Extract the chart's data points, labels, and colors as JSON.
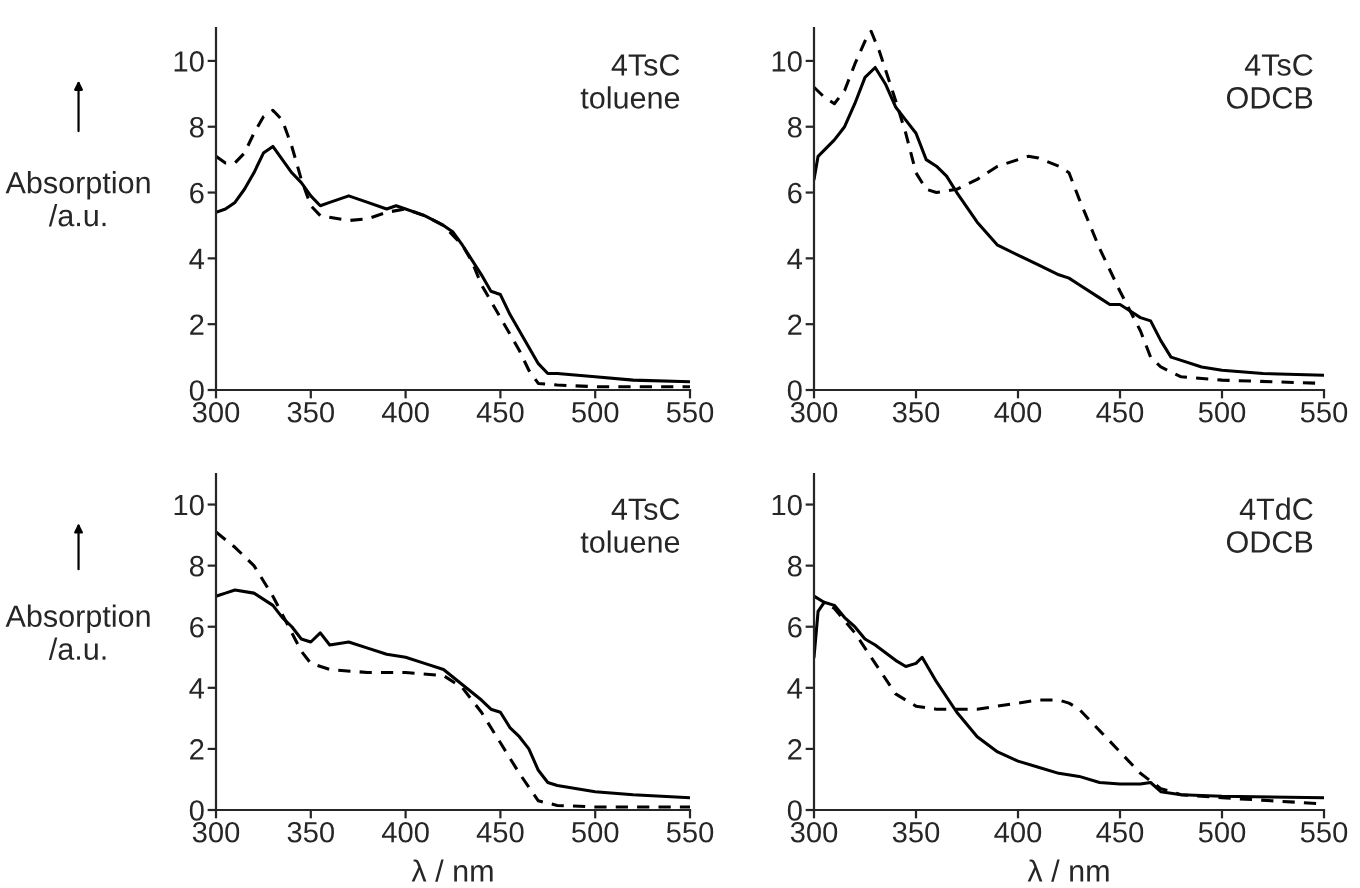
{
  "chart_data": [
    {
      "type": "line",
      "ylabel": "Absorption\n/a.u.",
      "annotations": [
        "4TsC\ntoluene"
      ],
      "xlim": [
        300,
        550
      ],
      "xticks": [
        300,
        350,
        400,
        450,
        500,
        550
      ],
      "ylim": [
        0,
        11
      ],
      "yticks": [
        0,
        2,
        4,
        6,
        8,
        10
      ],
      "grid": false,
      "legend": false,
      "series": [
        {
          "color": "#000000",
          "line_style": "solid",
          "x": [
            300,
            305,
            310,
            315,
            320,
            325,
            330,
            335,
            340,
            345,
            350,
            355,
            360,
            370,
            380,
            390,
            395,
            400,
            410,
            420,
            425,
            430,
            440,
            445,
            450,
            455,
            460,
            465,
            470,
            475,
            480,
            500,
            520,
            550
          ],
          "values": [
            5.4,
            5.5,
            5.7,
            6.1,
            6.6,
            7.2,
            7.4,
            7.0,
            6.6,
            6.3,
            5.9,
            5.6,
            5.7,
            5.9,
            5.7,
            5.5,
            5.6,
            5.5,
            5.3,
            5.0,
            4.8,
            4.4,
            3.5,
            3.0,
            2.9,
            2.3,
            1.8,
            1.3,
            0.8,
            0.5,
            0.5,
            0.4,
            0.3,
            0.25
          ]
        },
        {
          "color": "#000000",
          "line_style": "dashed",
          "x": [
            300,
            305,
            310,
            315,
            320,
            325,
            330,
            335,
            340,
            345,
            350,
            355,
            370,
            380,
            390,
            400,
            410,
            420,
            430,
            435,
            440,
            450,
            460,
            465,
            470,
            480,
            500,
            550
          ],
          "values": [
            7.1,
            6.9,
            6.9,
            7.2,
            7.8,
            8.3,
            8.5,
            8.2,
            7.4,
            6.4,
            5.6,
            5.3,
            5.15,
            5.2,
            5.4,
            5.5,
            5.3,
            5.0,
            4.4,
            3.9,
            3.2,
            2.2,
            1.2,
            0.6,
            0.2,
            0.15,
            0.1,
            0.1
          ]
        }
      ]
    },
    {
      "type": "line",
      "annotations": [
        "4TsC\nODCB"
      ],
      "xlim": [
        300,
        550
      ],
      "xticks": [
        300,
        350,
        400,
        450,
        500,
        550
      ],
      "ylim": [
        0,
        11
      ],
      "yticks": [
        0,
        2,
        4,
        6,
        8,
        10
      ],
      "grid": false,
      "legend": false,
      "series": [
        {
          "color": "#000000",
          "line_style": "solid",
          "x": [
            300,
            302,
            310,
            315,
            320,
            325,
            330,
            335,
            340,
            345,
            350,
            355,
            360,
            365,
            370,
            380,
            390,
            400,
            410,
            420,
            425,
            430,
            440,
            445,
            450,
            455,
            460,
            465,
            470,
            475,
            480,
            490,
            500,
            520,
            550
          ],
          "values": [
            6.4,
            7.1,
            7.6,
            8.0,
            8.7,
            9.5,
            9.8,
            9.3,
            8.6,
            8.2,
            7.8,
            7.0,
            6.8,
            6.5,
            6.0,
            5.1,
            4.4,
            4.1,
            3.8,
            3.5,
            3.4,
            3.2,
            2.8,
            2.6,
            2.6,
            2.4,
            2.2,
            2.1,
            1.5,
            1.0,
            0.9,
            0.7,
            0.6,
            0.5,
            0.45
          ]
        },
        {
          "color": "#000000",
          "line_style": "dashed",
          "x": [
            300,
            305,
            310,
            315,
            320,
            325,
            328,
            332,
            340,
            345,
            350,
            355,
            360,
            370,
            380,
            390,
            400,
            405,
            410,
            420,
            425,
            430,
            440,
            450,
            460,
            465,
            470,
            480,
            500,
            550
          ],
          "values": [
            9.2,
            8.9,
            8.7,
            9.1,
            9.9,
            10.6,
            10.9,
            10.3,
            8.8,
            7.8,
            6.6,
            6.1,
            6.0,
            6.1,
            6.4,
            6.8,
            7.0,
            7.1,
            7.05,
            6.8,
            6.6,
            5.8,
            4.3,
            3.0,
            1.8,
            1.0,
            0.7,
            0.4,
            0.3,
            0.2
          ]
        }
      ]
    },
    {
      "type": "line",
      "ylabel": "Absorption\n/a.u.",
      "xlabel": "λ / nm",
      "annotations": [
        "4TsC\ntoluene"
      ],
      "xlim": [
        300,
        550
      ],
      "xticks": [
        300,
        350,
        400,
        450,
        500,
        550
      ],
      "ylim": [
        0,
        11
      ],
      "yticks": [
        0,
        2,
        4,
        6,
        8,
        10
      ],
      "grid": false,
      "legend": false,
      "series": [
        {
          "color": "#000000",
          "line_style": "solid",
          "x": [
            300,
            305,
            310,
            320,
            330,
            335,
            340,
            345,
            350,
            355,
            360,
            370,
            380,
            390,
            400,
            410,
            420,
            430,
            440,
            445,
            450,
            455,
            460,
            465,
            470,
            475,
            480,
            500,
            520,
            550
          ],
          "values": [
            7.0,
            7.1,
            7.2,
            7.1,
            6.7,
            6.3,
            6.0,
            5.6,
            5.5,
            5.8,
            5.4,
            5.5,
            5.3,
            5.1,
            5.0,
            4.8,
            4.6,
            4.1,
            3.6,
            3.3,
            3.2,
            2.7,
            2.4,
            2.0,
            1.3,
            0.9,
            0.8,
            0.6,
            0.5,
            0.4
          ]
        },
        {
          "color": "#000000",
          "line_style": "dashed",
          "x": [
            300,
            310,
            320,
            330,
            340,
            345,
            350,
            360,
            380,
            400,
            420,
            430,
            440,
            450,
            460,
            470,
            480,
            500,
            550
          ],
          "values": [
            9.1,
            8.6,
            8.0,
            7.0,
            5.8,
            5.2,
            4.8,
            4.6,
            4.5,
            4.5,
            4.4,
            4.0,
            3.2,
            2.2,
            1.2,
            0.3,
            0.15,
            0.1,
            0.1
          ]
        }
      ]
    },
    {
      "type": "line",
      "xlabel": "λ / nm",
      "annotations": [
        "4TdC\nODCB"
      ],
      "xlim": [
        300,
        550
      ],
      "xticks": [
        300,
        350,
        400,
        450,
        500,
        550
      ],
      "ylim": [
        0,
        11
      ],
      "yticks": [
        0,
        2,
        4,
        6,
        8,
        10
      ],
      "grid": false,
      "legend": false,
      "series": [
        {
          "color": "#000000",
          "line_style": "solid",
          "x": [
            300,
            302,
            305,
            310,
            315,
            320,
            325,
            330,
            340,
            345,
            350,
            353,
            360,
            370,
            380,
            390,
            400,
            410,
            420,
            430,
            440,
            450,
            460,
            465,
            470,
            480,
            500,
            550
          ],
          "values": [
            5.0,
            6.5,
            6.8,
            6.7,
            6.3,
            6.0,
            5.6,
            5.4,
            4.9,
            4.7,
            4.8,
            5.0,
            4.2,
            3.2,
            2.4,
            1.9,
            1.6,
            1.4,
            1.2,
            1.1,
            0.9,
            0.85,
            0.85,
            0.9,
            0.6,
            0.5,
            0.45,
            0.4
          ]
        },
        {
          "color": "#000000",
          "line_style": "dashed",
          "x": [
            300,
            310,
            320,
            330,
            340,
            350,
            360,
            380,
            400,
            410,
            420,
            425,
            430,
            440,
            450,
            460,
            470,
            480,
            500,
            550
          ],
          "values": [
            7.0,
            6.6,
            5.8,
            4.8,
            3.8,
            3.4,
            3.3,
            3.3,
            3.5,
            3.6,
            3.6,
            3.5,
            3.3,
            2.6,
            1.9,
            1.2,
            0.7,
            0.5,
            0.4,
            0.2
          ]
        }
      ]
    }
  ]
}
